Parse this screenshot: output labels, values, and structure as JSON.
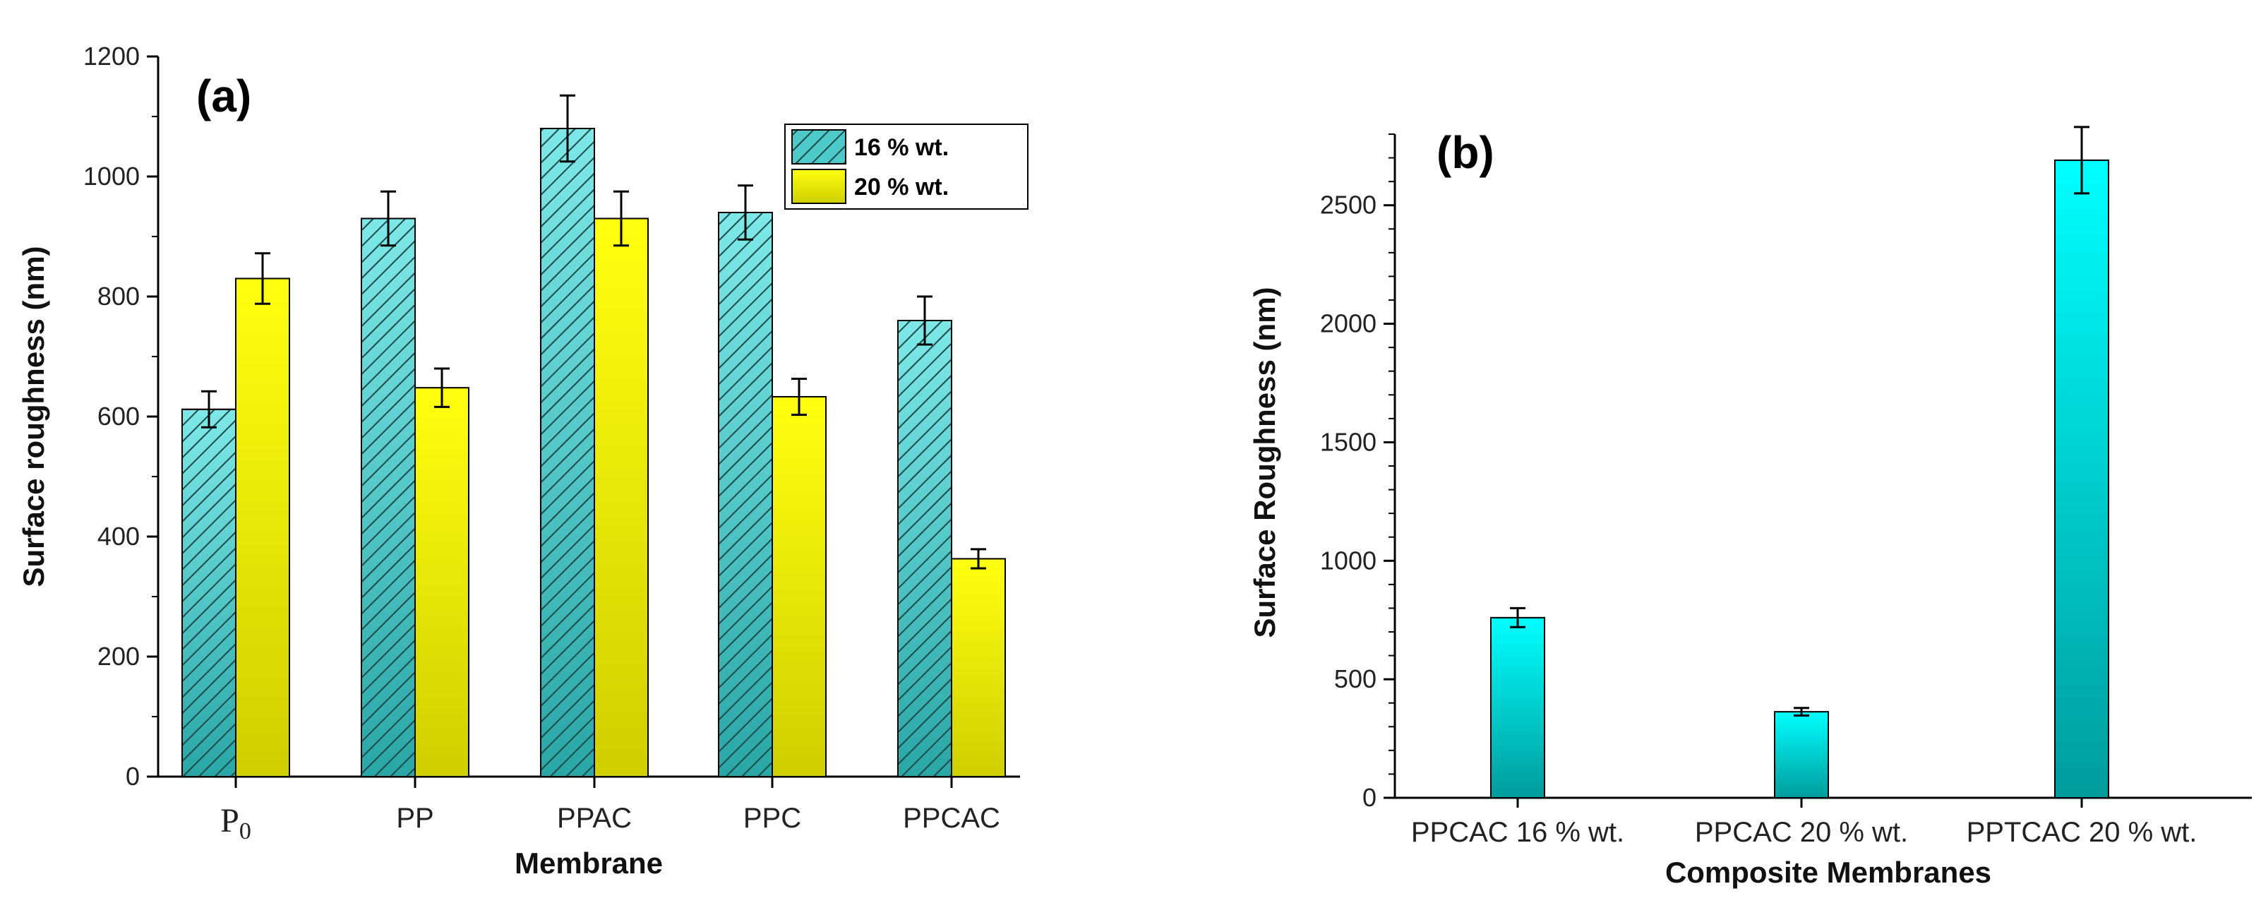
{
  "chart_data": [
    {
      "type": "bar",
      "panel_label": "(a)",
      "title": "",
      "xlabel": "Membrane",
      "ylabel": "Surface roughness (nm)",
      "categories": [
        "P0",
        "PP",
        "PPAC",
        "PPC",
        "PPCAC"
      ],
      "series": [
        {
          "name": "16 % wt.",
          "values": [
            612,
            930,
            1080,
            940,
            760
          ],
          "errors": [
            30,
            45,
            55,
            45,
            40
          ],
          "color": "#4dc9c9",
          "pattern": "hatched"
        },
        {
          "name": "20 % wt.",
          "values": [
            830,
            648,
            930,
            633,
            363
          ],
          "errors": [
            42,
            32,
            45,
            30,
            16
          ],
          "color": "#ffff00",
          "pattern": "solid"
        }
      ],
      "ylim": [
        0,
        1200
      ],
      "yticks": [
        0,
        200,
        400,
        600,
        800,
        1000,
        1200
      ],
      "legend": "top-right"
    },
    {
      "type": "bar",
      "panel_label": "(b)",
      "title": "",
      "xlabel": "Composite Membranes",
      "ylabel": "Surface Roughness (nm)",
      "categories": [
        "PPCAC 16 % wt.",
        "PPCAC 20 % wt.",
        "PPTCAC 20 % wt."
      ],
      "values": [
        760,
        363,
        2690
      ],
      "errors": [
        40,
        16,
        140
      ],
      "ylim": [
        0,
        2800
      ],
      "yticks": [
        0,
        500,
        1000,
        1500,
        2000,
        2500
      ],
      "color": "#00f0f0"
    }
  ]
}
